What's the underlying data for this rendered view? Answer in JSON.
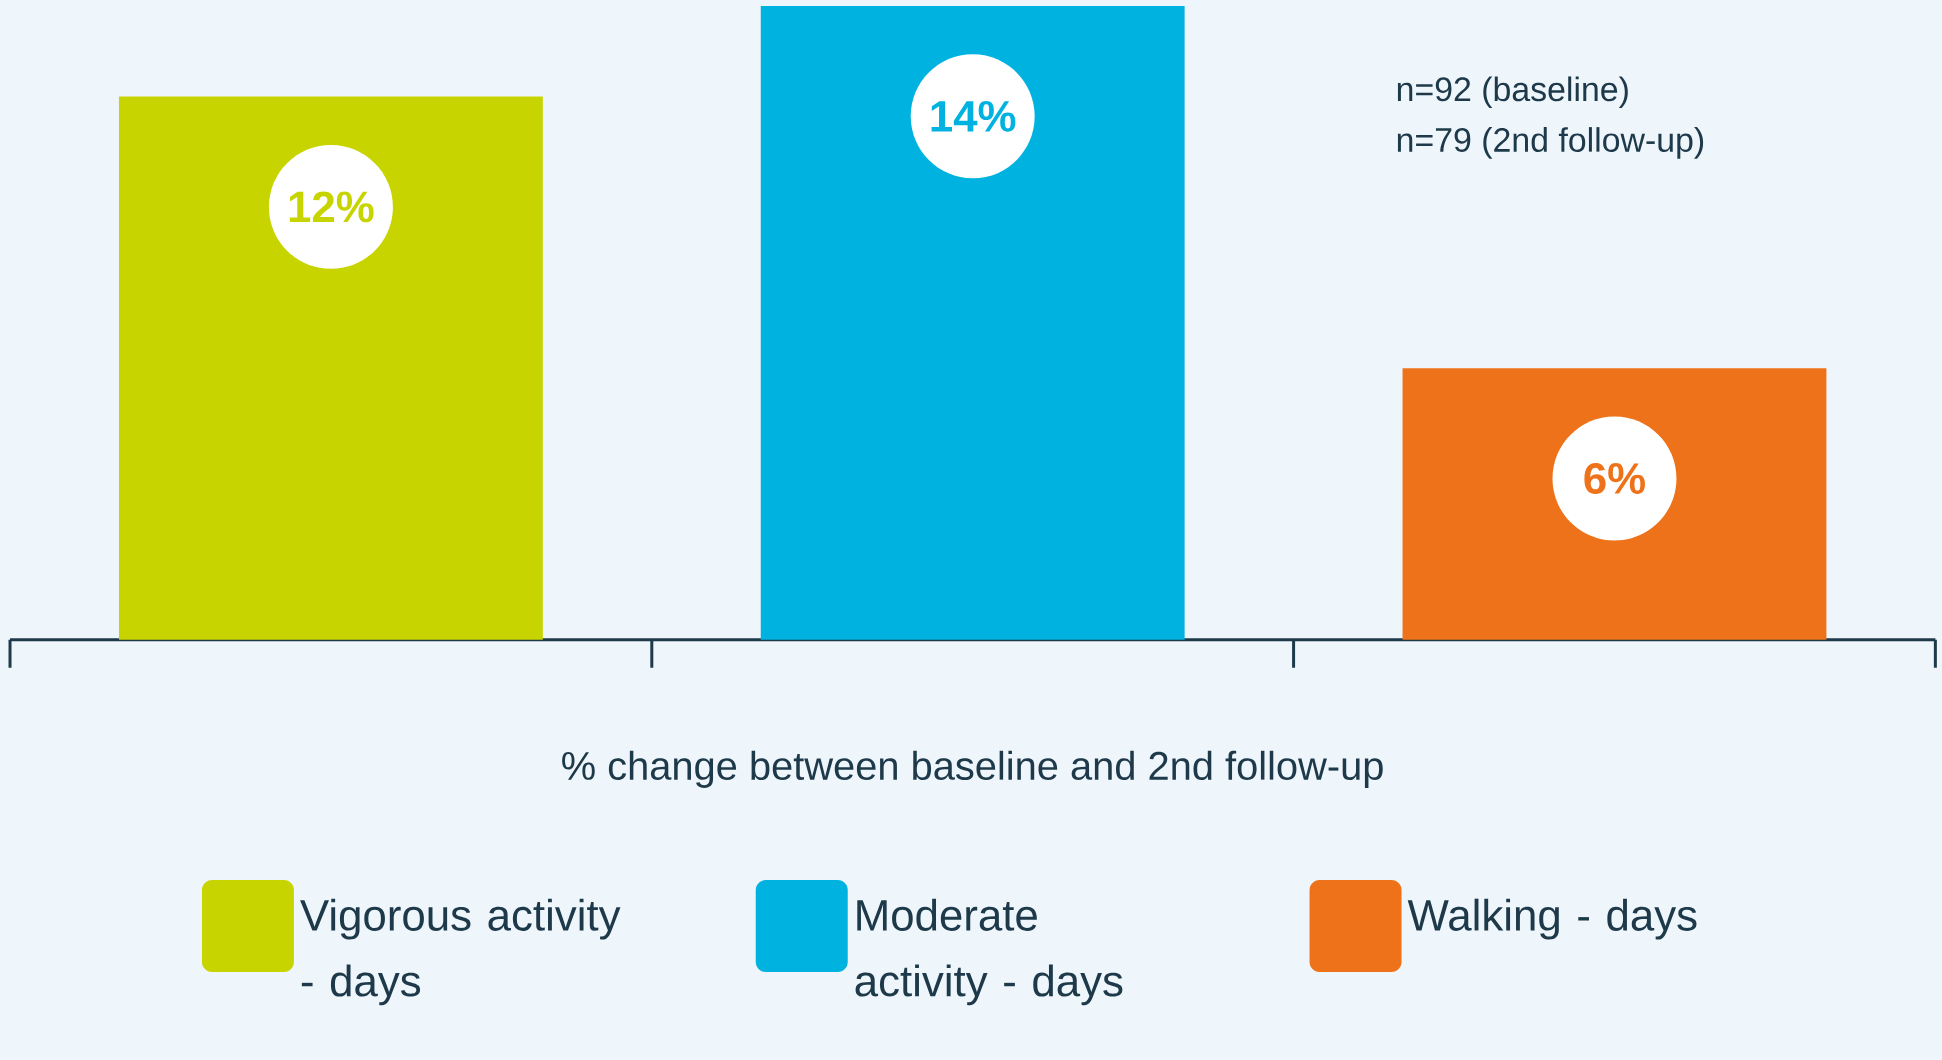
{
  "chart_data": {
    "type": "bar",
    "xlabel": "% change between baseline and 2nd follow-up",
    "categories": [
      null,
      null,
      null
    ],
    "series": [
      {
        "name": "Vigorous activity - days",
        "color": "#c8d400",
        "values": [
          12,
          null,
          null
        ],
        "value_labels": [
          "12%",
          null,
          null
        ]
      },
      {
        "name": "Moderate activity - days",
        "color": "#00b2e0",
        "values": [
          null,
          14,
          null
        ],
        "value_labels": [
          null,
          "14%",
          null
        ]
      },
      {
        "name": "Walking - days",
        "color": "#ee7219",
        "values": [
          null,
          null,
          6
        ],
        "value_labels": [
          null,
          null,
          "6%"
        ]
      }
    ],
    "stacked": true,
    "tick_labels": false,
    "legend": "bottom",
    "annotations": [
      "n=92 (baseline)",
      "n=79 (2nd follow-up)"
    ]
  }
}
